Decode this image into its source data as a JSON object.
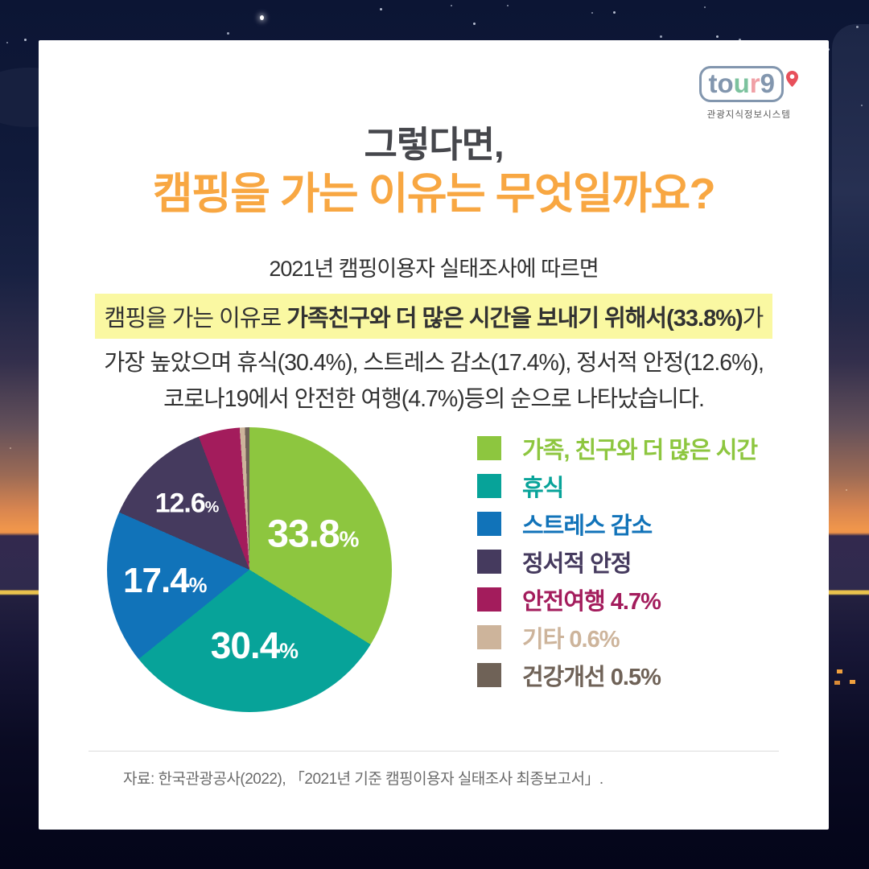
{
  "logo": {
    "name": "tour9",
    "letters": [
      {
        "ch": "t",
        "color": "#8296ae"
      },
      {
        "ch": "o",
        "color": "#8296ae"
      },
      {
        "ch": "u",
        "color": "#7cc29e"
      },
      {
        "ch": "r",
        "color": "#f0a0a6"
      },
      {
        "ch": "9",
        "color": "#8296ae"
      }
    ],
    "pin_color": "#e8505b",
    "tagline": "관광지식정보시스템"
  },
  "header": {
    "subtitle": "그렇다면,",
    "title": "캠핑을 가는 이유는 무엇일까요?",
    "title_color": "#f8a742"
  },
  "body": {
    "line1": "2021년 캠핑이용자 실태조사에 따르면",
    "highlight_prefix": "캠핑을 가는 이유로 ",
    "highlight_bold": "가족친구와 더 많은 시간을 보내기 위해서(33.8%)",
    "highlight_suffix": "가",
    "highlight_bg": "#faf8a2",
    "line3": "가장 높았으며 휴식(30.4%), 스트레스 감소(17.4%), 정서적 안정(12.6%),",
    "line4": "코로나19에서 안전한 여행(4.7%)등의 순으로 나타났습니다."
  },
  "chart_data": {
    "type": "pie",
    "unit": "%",
    "start_angle_deg": 0,
    "direction": "clockwise",
    "legend_position": "right",
    "slices": [
      {
        "label": "가족, 친구와 더 많은 시간",
        "value": 33.8,
        "color": "#8dc63f",
        "inside_label": "33.8%"
      },
      {
        "label": "휴식",
        "value": 30.4,
        "color": "#07a399",
        "inside_label": "30.4%"
      },
      {
        "label": "스트레스 감소",
        "value": 17.4,
        "color": "#1173b9",
        "inside_label": "17.4%"
      },
      {
        "label": "정서적 안정",
        "value": 12.6,
        "color": "#453a5e",
        "inside_label": "12.6%"
      },
      {
        "label": "안전여행",
        "value": 4.7,
        "color": "#a31c5c",
        "inside_label": ""
      },
      {
        "label": "기타",
        "value": 0.6,
        "color": "#cdb49b",
        "inside_label": ""
      },
      {
        "label": "건강개선",
        "value": 0.5,
        "color": "#6f6257",
        "inside_label": ""
      }
    ]
  },
  "legend": {
    "items": [
      {
        "label": "가족, 친구와 더 많은 시간",
        "color": "#8dc63f"
      },
      {
        "label": "휴식",
        "color": "#07a399"
      },
      {
        "label": "스트레스 감소",
        "color": "#1173b9"
      },
      {
        "label": "정서적 안정",
        "color": "#453a5e"
      },
      {
        "label": "안전여행 4.7%",
        "color": "#a31c5c"
      },
      {
        "label": "기타 0.6%",
        "color": "#cdb49b"
      },
      {
        "label": "건강개선 0.5%",
        "color": "#6f6257"
      }
    ]
  },
  "footer": {
    "source": "자료: 한국관광공사(2022), 「2021년 기준 캠핑이용자 실태조사 최종보고서」."
  }
}
